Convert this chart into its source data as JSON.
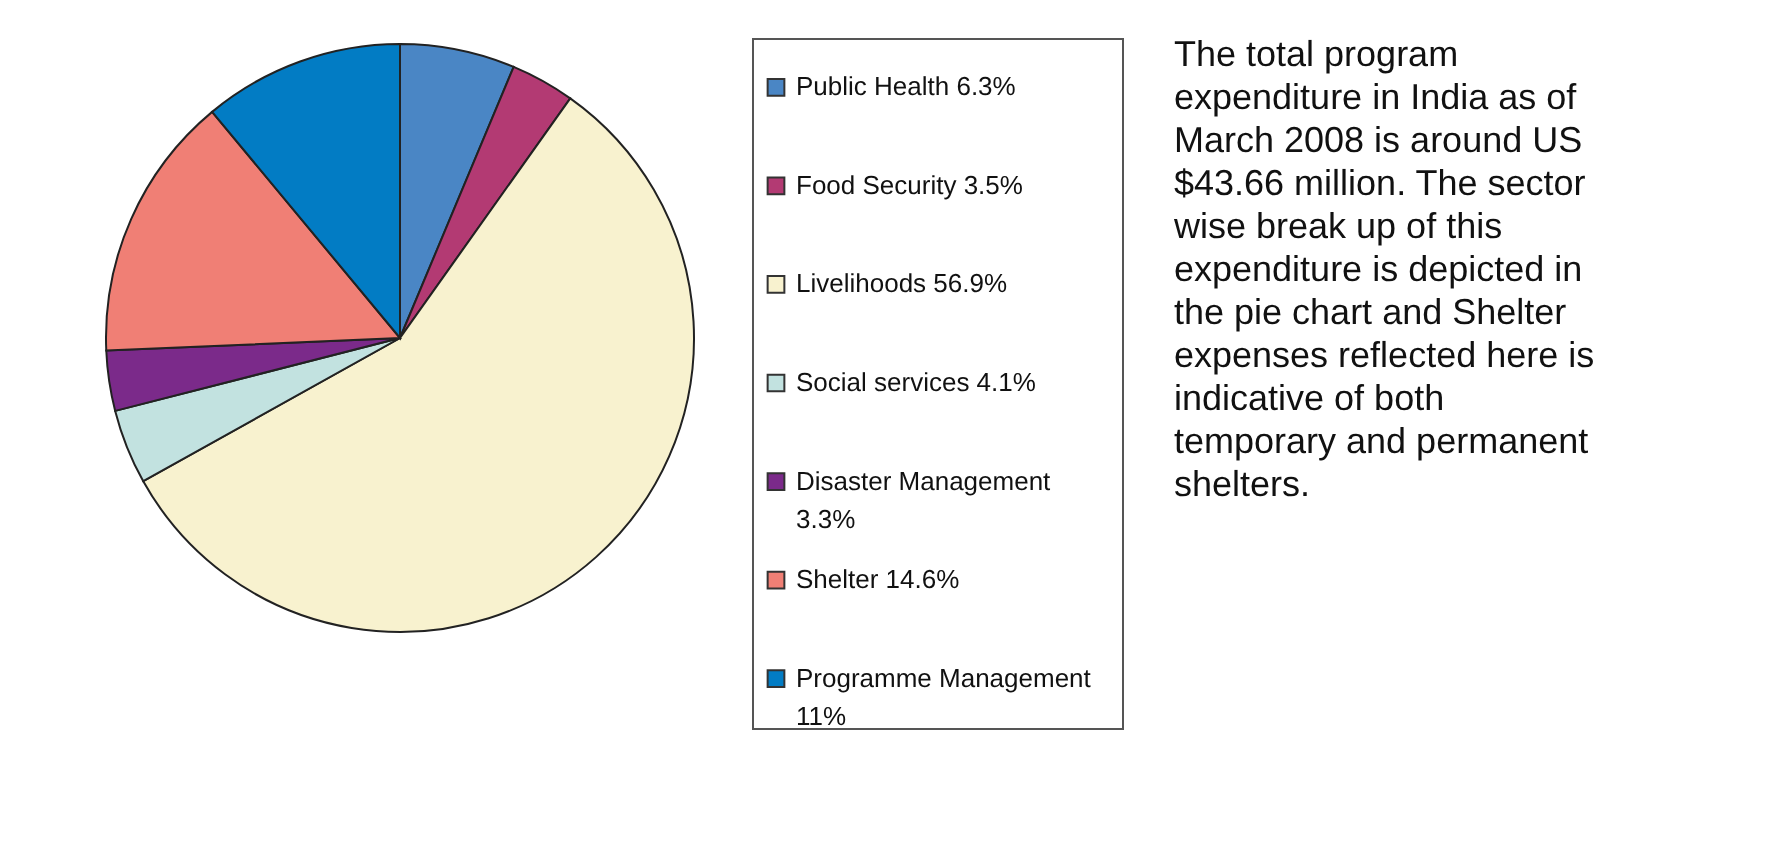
{
  "chart_data": {
    "type": "pie",
    "categories": [
      "Public Health",
      "Food Security",
      "Livelihoods",
      "Social services",
      "Disaster Management",
      "Shelter",
      "Programme Management"
    ],
    "values": [
      6.3,
      3.5,
      56.9,
      4.1,
      3.3,
      14.6,
      11
    ],
    "value_labels": [
      "6.3%",
      "3.5%",
      "56.9%",
      "4.1%",
      "3.3%",
      "14.6%",
      "11%"
    ],
    "colors": [
      "#4a86c5",
      "#b33a73",
      "#f8f2cf",
      "#c2e2e0",
      "#7b2a8a",
      "#f07f75",
      "#027cc4"
    ],
    "legend": "right",
    "annotations": [
      "The total program expenditure in India as of March 2008 is around US $43.66 million. The sector wise break up of this expenditure is depicted in the pie chart and Shelter expenses reflected here is indicative of both temporary and permanent shelters."
    ]
  }
}
